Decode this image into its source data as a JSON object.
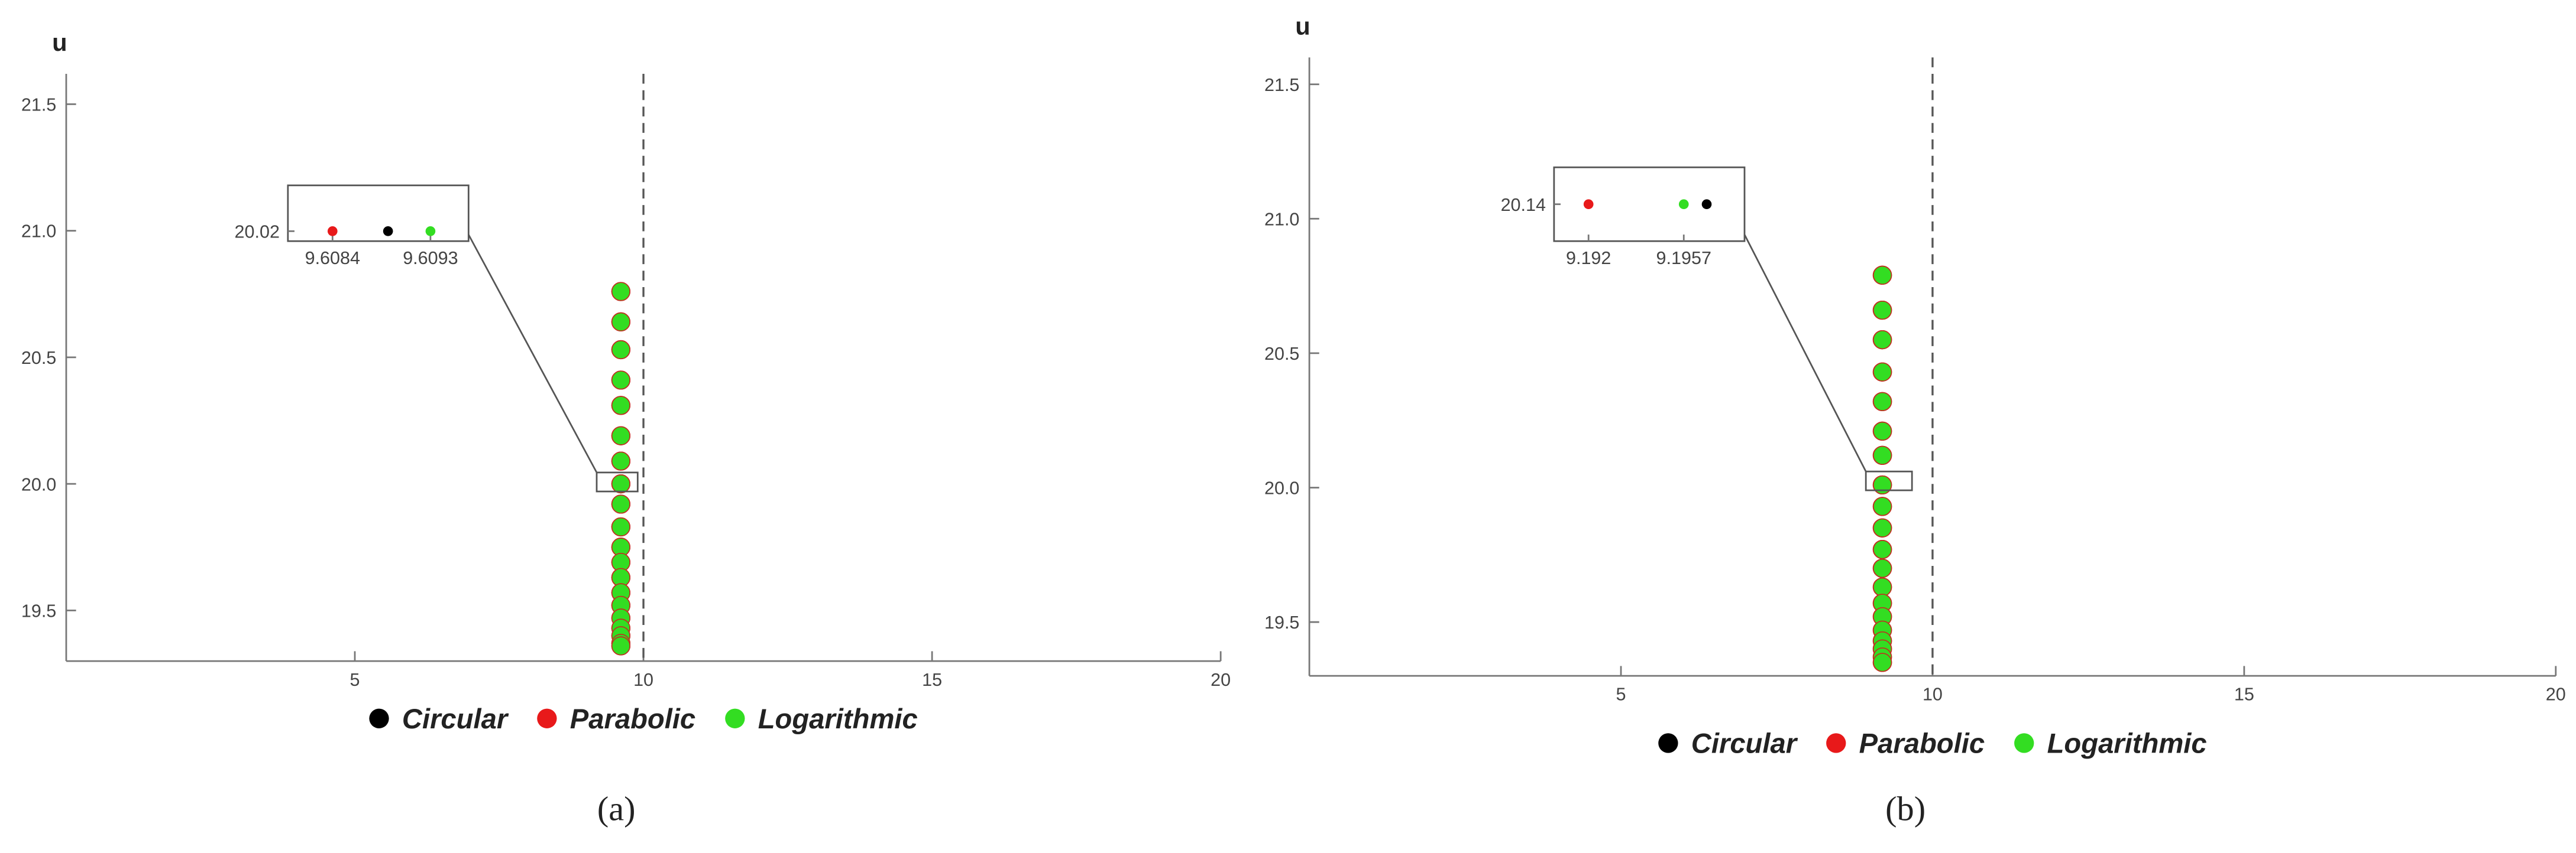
{
  "chart_data": [
    {
      "type": "scatter",
      "ylabel": "u",
      "caption": "(a)",
      "xlim": [
        0,
        20
      ],
      "ylim": [
        19.3,
        21.62
      ],
      "xticks": [
        5,
        10,
        15,
        20
      ],
      "yticks": [
        19.5,
        {
          "value": 20,
          "label": "20.0"
        },
        20.5,
        {
          "value": 21,
          "label": "21.0"
        },
        21.5
      ],
      "vline": 10,
      "series": [
        {
          "name": "Circular",
          "color": "#000000",
          "x": [
            9.6089,
            9.6089,
            9.6089,
            9.6089,
            9.6089,
            9.6089,
            9.6089,
            9.6089,
            9.6089,
            9.6089,
            9.6089,
            9.6089,
            9.6089,
            9.6089,
            9.6089,
            9.6089,
            9.6089,
            9.6089,
            9.6089,
            9.6089
          ],
          "values": [
            20.76,
            20.64,
            20.53,
            20.41,
            20.31,
            20.19,
            20.09,
            20.0,
            19.92,
            19.83,
            19.75,
            19.69,
            19.63,
            19.57,
            19.52,
            19.47,
            19.43,
            19.4,
            19.37,
            19.36
          ]
        },
        {
          "name": "Parabolic",
          "color": "#e8191a",
          "x": [
            9.6084,
            9.6084,
            9.6084,
            9.6084,
            9.6084,
            9.6084,
            9.6084,
            9.6084,
            9.6084,
            9.6084,
            9.6084,
            9.6084,
            9.6084,
            9.6084,
            9.6084,
            9.6084,
            9.6084,
            9.6084,
            9.6084,
            9.6084
          ],
          "values": [
            20.76,
            20.64,
            20.53,
            20.41,
            20.31,
            20.19,
            20.09,
            20.0,
            19.92,
            19.83,
            19.75,
            19.69,
            19.63,
            19.57,
            19.52,
            19.47,
            19.43,
            19.4,
            19.37,
            19.36
          ]
        },
        {
          "name": "Logarithmic",
          "color": "#33dd22",
          "x": [
            9.6093,
            9.6093,
            9.6093,
            9.6093,
            9.6093,
            9.6093,
            9.6093,
            9.6093,
            9.6093,
            9.6093,
            9.6093,
            9.6093,
            9.6093,
            9.6093,
            9.6093,
            9.6093,
            9.6093,
            9.6093,
            9.6093,
            9.6093
          ],
          "values": [
            20.76,
            20.64,
            20.53,
            20.41,
            20.31,
            20.19,
            20.09,
            20.0,
            19.92,
            19.83,
            19.75,
            19.69,
            19.63,
            19.57,
            19.52,
            19.47,
            19.43,
            19.4,
            19.37,
            19.36
          ]
        }
      ],
      "zoom": {
        "xlim": [
          9.19,
          9.9
        ],
        "ylim": [
          19.97,
          20.045
        ]
      },
      "inset": {
        "xlim": [
          9.60799,
          9.60965
        ],
        "ylim": [
          20.015,
          20.043
        ],
        "xticks": [
          9.6084,
          9.6093
        ],
        "yticks": [
          20.02
        ],
        "x": [
          9.60891,
          9.6084,
          9.6093
        ],
        "values": [
          20.02,
          20.02,
          20.02
        ]
      }
    },
    {
      "type": "scatter",
      "ylabel": "u",
      "caption": "(b)",
      "xlim": [
        0,
        20
      ],
      "ylim": [
        19.3,
        21.6
      ],
      "xticks": [
        5,
        10,
        15,
        20
      ],
      "yticks": [
        19.5,
        {
          "value": 20,
          "label": "20.0"
        },
        20.5,
        {
          "value": 21,
          "label": "21.0"
        },
        21.5
      ],
      "vline": 10,
      "series": [
        {
          "name": "Circular",
          "color": "#000000",
          "x": [
            9.1966,
            9.1966,
            9.1966,
            9.1966,
            9.1966,
            9.1966,
            9.1966,
            9.1966,
            9.1966,
            9.1966,
            9.1966,
            9.1966,
            9.1966,
            9.1966,
            9.1966,
            9.1966,
            9.1966,
            9.1966,
            9.1966,
            9.1966
          ],
          "values": [
            20.79,
            20.66,
            20.55,
            20.43,
            20.32,
            20.21,
            20.12,
            20.01,
            19.93,
            19.85,
            19.77,
            19.7,
            19.63,
            19.57,
            19.52,
            19.47,
            19.43,
            19.4,
            19.37,
            19.35
          ]
        },
        {
          "name": "Parabolic",
          "color": "#e8191a",
          "x": [
            9.192,
            9.192,
            9.192,
            9.192,
            9.192,
            9.192,
            9.192,
            9.192,
            9.192,
            9.192,
            9.192,
            9.192,
            9.192,
            9.192,
            9.192,
            9.192,
            9.192,
            9.192,
            9.192,
            9.192
          ],
          "values": [
            20.79,
            20.66,
            20.55,
            20.43,
            20.32,
            20.21,
            20.12,
            20.01,
            19.93,
            19.85,
            19.77,
            19.7,
            19.63,
            19.57,
            19.52,
            19.47,
            19.43,
            19.4,
            19.37,
            19.35
          ]
        },
        {
          "name": "Logarithmic",
          "color": "#33dd22",
          "x": [
            9.1957,
            9.1957,
            9.1957,
            9.1957,
            9.1957,
            9.1957,
            9.1957,
            9.1957,
            9.1957,
            9.1957,
            9.1957,
            9.1957,
            9.1957,
            9.1957,
            9.1957,
            9.1957,
            9.1957,
            9.1957,
            9.1957,
            9.1957
          ],
          "values": [
            20.79,
            20.66,
            20.55,
            20.43,
            20.32,
            20.21,
            20.12,
            20.01,
            19.93,
            19.85,
            19.77,
            19.7,
            19.63,
            19.57,
            19.52,
            19.47,
            19.43,
            19.4,
            19.37,
            19.35
          ]
        }
      ],
      "zoom": {
        "xlim": [
          8.93,
          9.67
        ],
        "ylim": [
          19.99,
          20.06
        ]
      },
      "inset": {
        "xlim": [
          9.19066,
          9.19806
        ],
        "ylim": [
          20.13,
          20.15
        ],
        "xticks": [
          9.192,
          9.1957
        ],
        "yticks": [
          20.14
        ],
        "x": [
          9.19659,
          9.192,
          9.1957
        ],
        "values": [
          20.14,
          20.14,
          20.14
        ]
      }
    }
  ]
}
